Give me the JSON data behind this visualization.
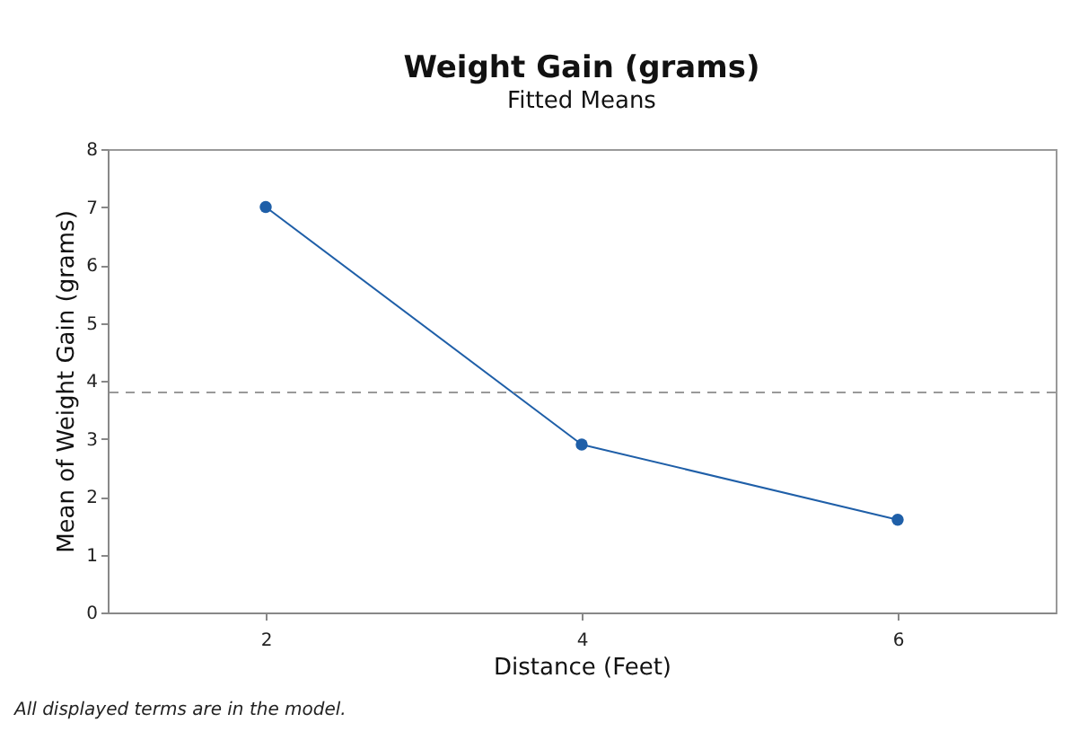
{
  "chart_data": {
    "type": "line",
    "title": "Weight Gain (grams)",
    "subtitle": "Fitted Means",
    "xlabel": "Distance (Feet)",
    "ylabel": "Mean of Weight Gain (grams)",
    "x": [
      2,
      4,
      6
    ],
    "series": [
      {
        "color": "#1f5fa8",
        "values": [
          7,
          2.9,
          1.6
        ]
      }
    ],
    "xlim": [
      1,
      7
    ],
    "xticks": [
      2,
      4,
      6
    ],
    "ylim": [
      0,
      8
    ],
    "yticks": [
      0,
      1,
      2,
      3,
      4,
      5,
      6,
      7,
      8
    ],
    "ref_lines": [
      {
        "axis": "y",
        "value": 3.8,
        "color": "#999999",
        "line_style": "dashed"
      }
    ],
    "marker": "circle",
    "grid": false,
    "legend": false,
    "annotations": [
      "All displayed terms are in the model."
    ]
  }
}
